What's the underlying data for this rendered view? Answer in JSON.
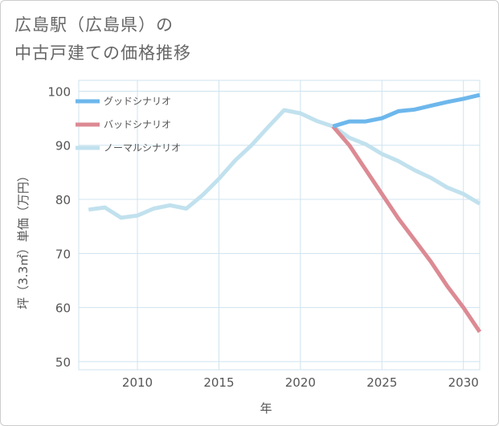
{
  "title": {
    "line1": "広島駅（広島県）の",
    "line2": "中古戸建ての価格推移"
  },
  "colors": {
    "good": "#6db7ec",
    "bad": "#dc8a93",
    "normal": "#c1e1ee",
    "grid": "#cfe3ef"
  },
  "chart_data": {
    "type": "line",
    "xlabel": "年",
    "ylabel": "坪（3.3㎡）単価（万円）",
    "xlim": [
      2006.4,
      2031
    ],
    "ylim": [
      48.5,
      102
    ],
    "x_ticks": [
      2010,
      2015,
      2020,
      2025,
      2030
    ],
    "y_ticks": [
      50,
      60,
      70,
      80,
      90,
      100
    ],
    "grid": true,
    "legend_position": "top-left",
    "series": [
      {
        "name": "グッドシナリオ",
        "color_key": "good",
        "x": [
          2022,
          2023,
          2024,
          2025,
          2026,
          2027,
          2028,
          2029,
          2030,
          2031
        ],
        "values": [
          93.5,
          94.4,
          94.4,
          95.0,
          96.3,
          96.6,
          97.3,
          98.0,
          98.6,
          99.3
        ]
      },
      {
        "name": "バッドシナリオ",
        "color_key": "bad",
        "x": [
          2022,
          2023,
          2024,
          2025,
          2026,
          2027,
          2028,
          2029,
          2030,
          2031
        ],
        "values": [
          93.5,
          90.0,
          85.5,
          81.0,
          76.5,
          72.5,
          68.5,
          64.0,
          60.0,
          55.5
        ]
      },
      {
        "name": "ノーマルシナリオ",
        "color_key": "normal",
        "x": [
          2007,
          2008,
          2009,
          2010,
          2011,
          2012,
          2013,
          2014,
          2015,
          2016,
          2017,
          2018,
          2019,
          2020,
          2021,
          2022,
          2023,
          2024,
          2025,
          2026,
          2027,
          2028,
          2029,
          2030,
          2031
        ],
        "values": [
          78.1,
          78.5,
          76.6,
          77.0,
          78.3,
          78.9,
          78.3,
          80.8,
          83.8,
          87.2,
          90.0,
          93.3,
          96.5,
          95.9,
          94.5,
          93.5,
          91.4,
          90.2,
          88.4,
          87.1,
          85.4,
          84.0,
          82.2,
          81.0,
          79.2
        ]
      }
    ]
  }
}
